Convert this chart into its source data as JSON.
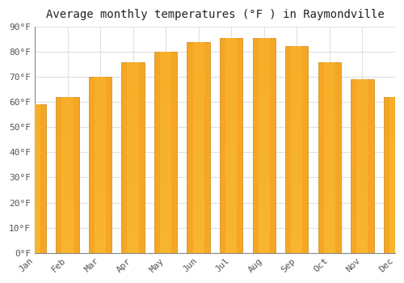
{
  "title": "Average monthly temperatures (°F ) in Raymondville",
  "months": [
    "Jan",
    "Feb",
    "Mar",
    "Apr",
    "May",
    "Jun",
    "Jul",
    "Aug",
    "Sep",
    "Oct",
    "Nov",
    "Dec"
  ],
  "values": [
    59,
    62,
    70,
    76,
    80,
    84,
    85.5,
    85.5,
    82.5,
    76,
    69,
    62
  ],
  "bar_color_outer": "#F5A623",
  "bar_color_inner": "#FFD84D",
  "ylim": [
    0,
    90
  ],
  "yticks": [
    0,
    10,
    20,
    30,
    40,
    50,
    60,
    70,
    80,
    90
  ],
  "ytick_labels": [
    "0°F",
    "10°F",
    "20°F",
    "30°F",
    "40°F",
    "50°F",
    "60°F",
    "70°F",
    "80°F",
    "90°F"
  ],
  "background_color": "#ffffff",
  "grid_color": "#e0e0e0",
  "title_fontsize": 10,
  "tick_fontsize": 8,
  "bar_width": 0.7
}
